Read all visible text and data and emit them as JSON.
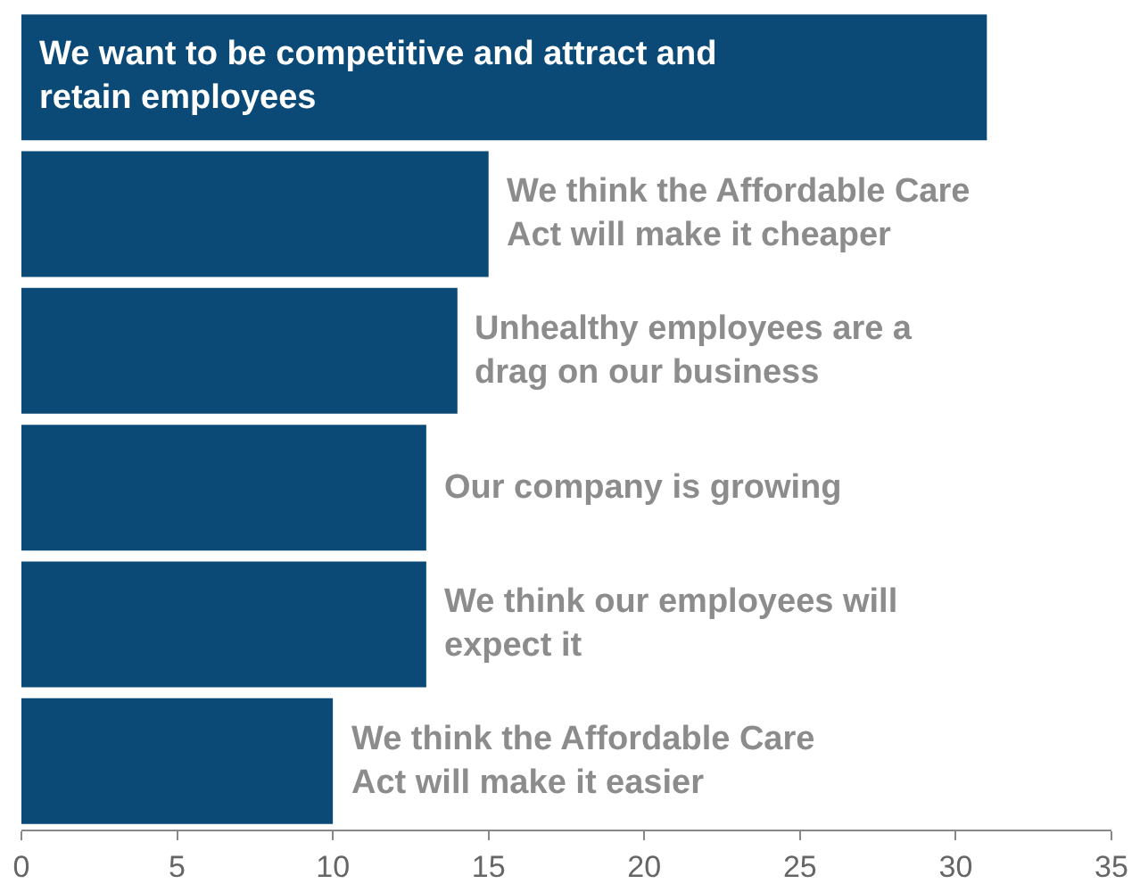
{
  "chart_data": {
    "type": "bar",
    "orientation": "horizontal",
    "categories": [
      "We want to be competitive and attract and retain employees",
      "We think the Affordable Care Act will make it cheaper",
      "Unhealthy employees are a drag on our business",
      "Our company is growing",
      "We think our employees will expect it",
      "We think the Affordable Care Act will make it easier"
    ],
    "values": [
      31,
      15,
      14,
      13,
      13,
      10
    ],
    "color": "#0b4a76",
    "xlim": [
      0,
      35
    ],
    "xticks": [
      0,
      5,
      10,
      15,
      20,
      25,
      30,
      35
    ],
    "tick_labels": "x",
    "legend": false
  }
}
